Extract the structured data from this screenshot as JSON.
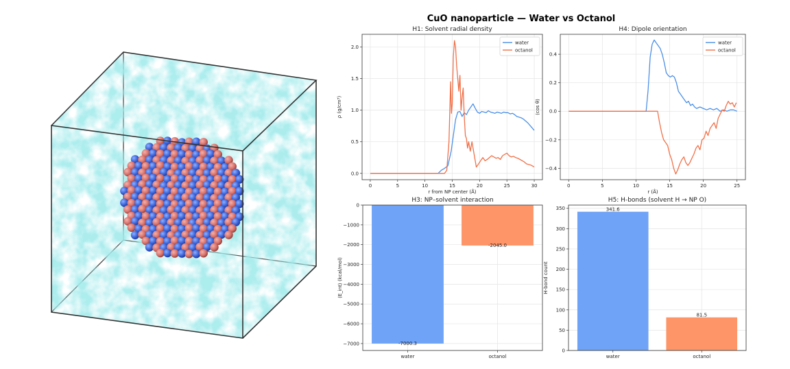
{
  "figure": {
    "suptitle": "CuO nanoparticle — Water vs Octanol"
  },
  "scene": {
    "water_color": "#5fd3d6",
    "cu_color": "#d9706a",
    "o_color": "#3a62d9",
    "box_color": "#333333"
  },
  "chart_data": [
    {
      "id": "h1",
      "type": "line",
      "title": "H1: Solvent radial density",
      "xlabel": "r from NP center (Å)",
      "ylabel": "ρ (g/cm³)",
      "xlim": [
        -1.5,
        31.5
      ],
      "ylim": [
        -0.1,
        2.2
      ],
      "xticks": [
        0,
        5,
        10,
        15,
        20,
        25,
        30
      ],
      "yticks": [
        0.0,
        0.5,
        1.0,
        1.5,
        2.0
      ],
      "ytick_labels": [
        "0.0",
        "0.5",
        "1.0",
        "1.5",
        "2.0"
      ],
      "grid": true,
      "legend": "top-right",
      "series": [
        {
          "name": "water",
          "color": "#4a8fe7",
          "x": [
            0,
            12.4,
            13.0,
            13.6,
            14.2,
            14.8,
            15.2,
            15.6,
            16.0,
            16.4,
            16.8,
            17.2,
            17.6,
            18.0,
            18.4,
            18.8,
            19.2,
            19.6,
            20.0,
            20.4,
            20.8,
            21.2,
            21.6,
            22.0,
            22.4,
            22.8,
            23.2,
            23.6,
            24.0,
            24.4,
            24.8,
            25.2,
            25.6,
            26.0,
            26.4,
            26.8,
            27.2,
            27.6,
            28.0,
            28.4,
            28.8,
            29.2,
            29.6,
            30.0
          ],
          "y": [
            0.0,
            0.0,
            0.05,
            0.08,
            0.12,
            0.35,
            0.6,
            0.85,
            0.97,
            0.98,
            0.9,
            0.96,
            0.93,
            1.0,
            1.05,
            1.1,
            1.03,
            0.97,
            0.95,
            0.98,
            0.97,
            0.96,
            0.99,
            0.97,
            0.96,
            0.95,
            0.97,
            0.96,
            0.95,
            0.97,
            0.96,
            0.96,
            0.94,
            0.95,
            0.93,
            0.9,
            0.89,
            0.88,
            0.86,
            0.83,
            0.8,
            0.76,
            0.72,
            0.68
          ]
        },
        {
          "name": "octanol",
          "color": "#f07048",
          "x": [
            0,
            13.6,
            14.0,
            14.4,
            14.7,
            14.85,
            15.0,
            15.2,
            15.4,
            15.6,
            15.8,
            16.0,
            16.2,
            16.4,
            16.6,
            16.8,
            17.0,
            17.2,
            17.4,
            17.6,
            17.8,
            18.0,
            18.3,
            18.6,
            19.0,
            19.4,
            19.8,
            20.2,
            20.6,
            21.0,
            21.4,
            21.8,
            22.2,
            22.6,
            23.0,
            23.4,
            23.8,
            24.2,
            24.6,
            25.0,
            25.4,
            25.8,
            26.2,
            26.6,
            27.0,
            27.4,
            27.8,
            28.2,
            28.6,
            29.0,
            29.4,
            29.8,
            30.0
          ],
          "y": [
            0.0,
            0.0,
            0.05,
            0.5,
            1.45,
            0.95,
            1.1,
            1.85,
            2.1,
            2.0,
            1.7,
            1.5,
            1.3,
            1.55,
            1.0,
            1.2,
            1.35,
            0.9,
            0.6,
            0.55,
            0.4,
            0.5,
            0.35,
            0.5,
            0.3,
            0.1,
            0.15,
            0.2,
            0.25,
            0.2,
            0.22,
            0.25,
            0.28,
            0.26,
            0.24,
            0.25,
            0.22,
            0.28,
            0.3,
            0.32,
            0.28,
            0.26,
            0.27,
            0.25,
            0.24,
            0.22,
            0.2,
            0.18,
            0.15,
            0.14,
            0.13,
            0.11,
            0.1
          ]
        }
      ]
    },
    {
      "id": "h4",
      "type": "line",
      "title": "H4: Dipole orientation",
      "xlabel": "r (Å)",
      "ylabel": "⟨cos θ⟩",
      "xlim": [
        -1.25,
        26.25
      ],
      "ylim": [
        -0.48,
        0.54
      ],
      "xticks": [
        0,
        5,
        10,
        15,
        20,
        25
      ],
      "yticks": [
        -0.4,
        -0.2,
        0.0,
        0.2,
        0.4
      ],
      "ytick_labels": [
        "−0.4",
        "−0.2",
        "0.0",
        "0.2",
        "0.4"
      ],
      "grid": true,
      "legend": "top-right",
      "series": [
        {
          "name": "water",
          "color": "#4a8fe7",
          "x": [
            0,
            11.5,
            11.8,
            12.1,
            12.4,
            12.7,
            13.0,
            13.3,
            13.6,
            13.9,
            14.2,
            14.5,
            14.8,
            15.1,
            15.4,
            15.7,
            16.0,
            16.3,
            16.6,
            16.9,
            17.2,
            17.5,
            17.8,
            18.1,
            18.4,
            18.7,
            19.0,
            19.5,
            20.0,
            20.5,
            21.0,
            21.5,
            22.0,
            22.5,
            23.0,
            23.5,
            24.0,
            24.5,
            25.0
          ],
          "y": [
            0.0,
            0.0,
            0.15,
            0.38,
            0.47,
            0.5,
            0.48,
            0.46,
            0.44,
            0.4,
            0.34,
            0.27,
            0.25,
            0.24,
            0.25,
            0.24,
            0.2,
            0.14,
            0.12,
            0.1,
            0.08,
            0.06,
            0.07,
            0.04,
            0.05,
            0.03,
            0.02,
            0.03,
            0.02,
            0.01,
            0.02,
            0.01,
            0.02,
            0.0,
            0.01,
            0.0,
            0.01,
            0.01,
            0.0
          ]
        },
        {
          "name": "octanol",
          "color": "#f07048",
          "x": [
            0,
            13.2,
            13.5,
            13.8,
            14.1,
            14.4,
            14.7,
            15.0,
            15.3,
            15.6,
            15.9,
            16.2,
            16.5,
            16.8,
            17.1,
            17.4,
            17.7,
            18.0,
            18.3,
            18.6,
            18.9,
            19.2,
            19.5,
            19.8,
            20.1,
            20.4,
            20.7,
            21.0,
            21.3,
            21.6,
            21.9,
            22.2,
            22.5,
            22.8,
            23.1,
            23.4,
            23.7,
            24.0,
            24.3,
            24.6,
            24.9
          ],
          "y": [
            0.0,
            0.0,
            -0.08,
            -0.15,
            -0.2,
            -0.22,
            -0.24,
            -0.3,
            -0.34,
            -0.4,
            -0.44,
            -0.41,
            -0.37,
            -0.34,
            -0.32,
            -0.36,
            -0.38,
            -0.36,
            -0.33,
            -0.3,
            -0.26,
            -0.24,
            -0.27,
            -0.2,
            -0.19,
            -0.14,
            -0.17,
            -0.12,
            -0.1,
            -0.08,
            -0.12,
            -0.05,
            -0.02,
            0.01,
            0.0,
            0.04,
            0.07,
            0.05,
            0.06,
            0.03,
            0.06
          ]
        }
      ]
    },
    {
      "id": "h3",
      "type": "bar",
      "title": "H3: NP–solvent interaction",
      "ylabel": "⟨E_int⟩ (kcal/mol)",
      "categories": [
        "water",
        "octanol"
      ],
      "values": [
        -7000.3,
        -2045.0
      ],
      "data_labels": [
        "-7000.3",
        "-2045.0"
      ],
      "colors": [
        "#6fa3f7",
        "#fd9568"
      ],
      "ylim": [
        -7350,
        0
      ],
      "yticks": [
        0,
        -1000,
        -2000,
        -3000,
        -4000,
        -5000,
        -6000,
        -7000
      ],
      "ytick_labels": [
        "0",
        "−1000",
        "−2000",
        "−3000",
        "−4000",
        "−5000",
        "−6000",
        "−7000"
      ],
      "grid": true
    },
    {
      "id": "h5",
      "type": "bar",
      "title": "H5: H-bonds (solvent H → NP O)",
      "ylabel": "H-bond count",
      "categories": [
        "water",
        "octanol"
      ],
      "values": [
        341.6,
        81.5
      ],
      "data_labels": [
        "341.6",
        "81.5"
      ],
      "colors": [
        "#6fa3f7",
        "#fd9568"
      ],
      "ylim": [
        0,
        358
      ],
      "yticks": [
        0,
        50,
        100,
        150,
        200,
        250,
        300,
        350
      ],
      "ytick_labels": [
        "0",
        "50",
        "100",
        "150",
        "200",
        "250",
        "300",
        "350"
      ],
      "grid": true
    }
  ]
}
